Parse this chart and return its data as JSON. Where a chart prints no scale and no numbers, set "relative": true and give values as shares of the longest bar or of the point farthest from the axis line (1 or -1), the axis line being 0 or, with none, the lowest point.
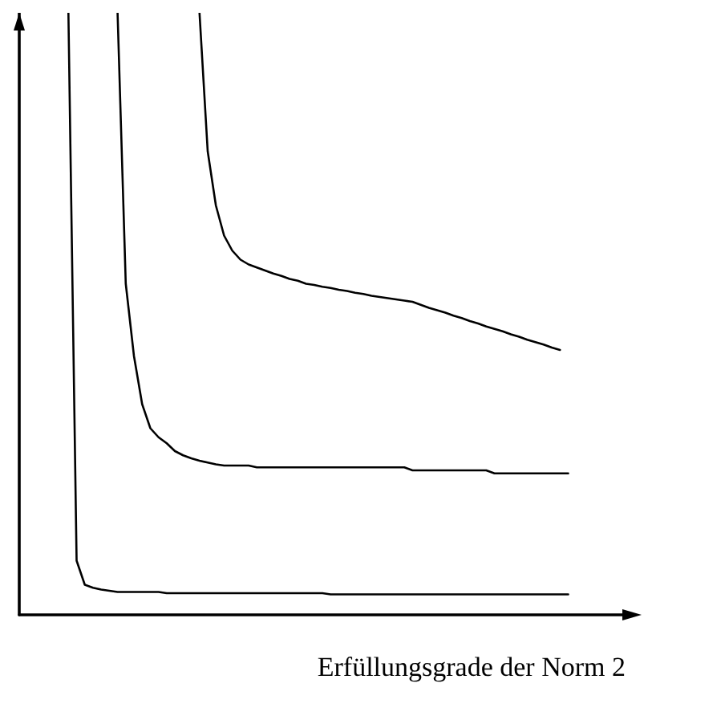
{
  "chart_data": {
    "type": "line",
    "relative": true,
    "xlabel": "Erfüllungsgrade der Norm 2",
    "marker": "none",
    "line_style": "solid",
    "categories": [
      null,
      null,
      null,
      null,
      null,
      null,
      null,
      null,
      null,
      null,
      null,
      null,
      null,
      null,
      null,
      null,
      null,
      null,
      null,
      null,
      null,
      null,
      null,
      null,
      null,
      null,
      null,
      null,
      null,
      null,
      null,
      null,
      null,
      null,
      null,
      null,
      null,
      null,
      null,
      null,
      null,
      null,
      null,
      null,
      null,
      null,
      null,
      null,
      null,
      null,
      null,
      null,
      null,
      null,
      null,
      null,
      null,
      null,
      null,
      null,
      null,
      null,
      null,
      null,
      null,
      null,
      null,
      null,
      null,
      null,
      null,
      null,
      null,
      null,
      null
    ],
    "series": [
      {
        "color": "#000000",
        "values": [
          null,
          null,
          null,
          null,
          null,
          null,
          1.0,
          0.09,
          0.05,
          0.045,
          0.042,
          0.04,
          0.038,
          0.038,
          0.038,
          0.038,
          0.038,
          0.038,
          0.036,
          0.036,
          0.036,
          0.036,
          0.036,
          0.036,
          0.036,
          0.036,
          0.036,
          0.036,
          0.036,
          0.036,
          0.036,
          0.036,
          0.036,
          0.036,
          0.036,
          0.036,
          0.036,
          0.036,
          0.034,
          0.034,
          0.034,
          0.034,
          0.034,
          0.034,
          0.034,
          0.034,
          0.034,
          0.034,
          0.034,
          0.034,
          0.034,
          0.034,
          0.034,
          0.034,
          0.034,
          0.034,
          0.034,
          0.034,
          0.034,
          0.034,
          0.034,
          0.034,
          0.034,
          0.034,
          0.034,
          0.034,
          0.034,
          0.034,
          null,
          null,
          null,
          null,
          null,
          null,
          null
        ]
      },
      {
        "color": "#000000",
        "values": [
          null,
          null,
          null,
          null,
          null,
          null,
          null,
          null,
          null,
          null,
          null,
          null,
          1.0,
          0.55,
          0.43,
          0.35,
          0.31,
          0.295,
          0.285,
          0.272,
          0.265,
          0.26,
          0.256,
          0.253,
          0.25,
          0.248,
          0.248,
          0.248,
          0.248,
          0.245,
          0.245,
          0.245,
          0.245,
          0.245,
          0.245,
          0.245,
          0.245,
          0.245,
          0.245,
          0.245,
          0.245,
          0.245,
          0.245,
          0.245,
          0.245,
          0.245,
          0.245,
          0.245,
          0.24,
          0.24,
          0.24,
          0.24,
          0.24,
          0.24,
          0.24,
          0.24,
          0.24,
          0.24,
          0.235,
          0.235,
          0.235,
          0.235,
          0.235,
          0.235,
          0.235,
          0.235,
          0.235,
          0.235,
          null,
          null,
          null,
          null,
          null,
          null,
          null
        ]
      },
      {
        "color": "#000000",
        "values": [
          null,
          null,
          null,
          null,
          null,
          null,
          null,
          null,
          null,
          null,
          null,
          null,
          null,
          null,
          null,
          null,
          null,
          null,
          null,
          null,
          null,
          null,
          1.0,
          0.77,
          0.68,
          0.63,
          0.605,
          0.59,
          0.582,
          0.577,
          0.572,
          0.567,
          0.563,
          0.558,
          0.555,
          0.55,
          0.548,
          0.545,
          0.543,
          0.54,
          0.538,
          0.535,
          0.533,
          0.53,
          0.528,
          0.526,
          0.524,
          0.522,
          0.52,
          0.515,
          0.51,
          0.506,
          0.502,
          0.497,
          0.493,
          0.488,
          0.484,
          0.479,
          0.475,
          0.471,
          0.466,
          0.462,
          0.457,
          0.453,
          0.449,
          0.444,
          0.44,
          null,
          null,
          null,
          null,
          null,
          null,
          null,
          null
        ]
      }
    ]
  }
}
